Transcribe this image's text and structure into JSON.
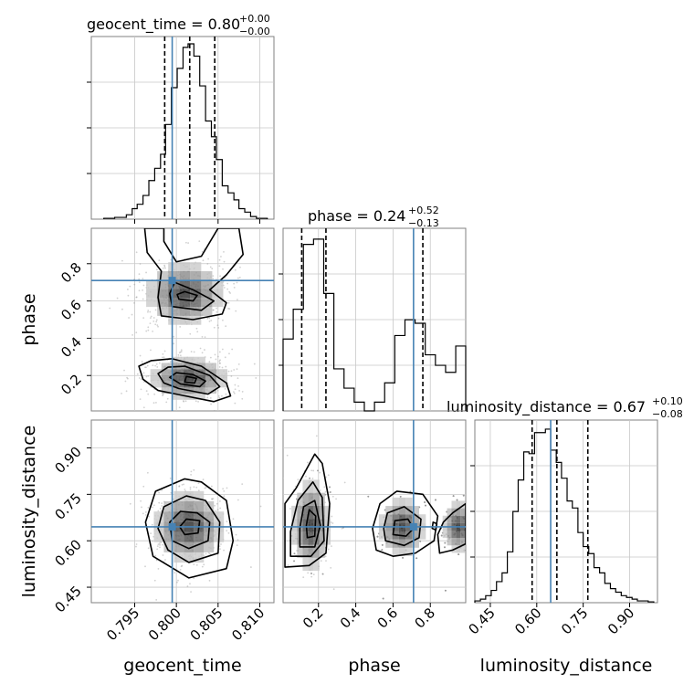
{
  "chart_data": {
    "type": "corner",
    "parameters": [
      "geocent_time",
      "phase",
      "luminosity_distance"
    ],
    "truths": {
      "geocent_time": 0.7995,
      "phase": 0.71,
      "luminosity_distance": 0.645
    },
    "truth_color": "#4682b4",
    "titles": [
      {
        "param": "geocent_time",
        "label": "geocent_time = 0.80",
        "plus": "+0.00",
        "minus": "−0.00"
      },
      {
        "param": "phase",
        "label": "phase = 0.24",
        "plus": "+0.52",
        "minus": "−0.13"
      },
      {
        "param": "luminosity_distance",
        "label": "luminosity_distance = 0.67",
        "plus": "+0.10",
        "minus": "−0.08"
      }
    ],
    "axes": {
      "geocent_time": {
        "range": [
          0.7898,
          0.8117
        ],
        "ticks": [
          0.795,
          0.8,
          0.805,
          0.81
        ],
        "tick_labels": [
          "0.795",
          "0.800",
          "0.805",
          "0.810"
        ]
      },
      "phase": {
        "range": [
          0.01,
          0.99
        ],
        "ticks": [
          0.2,
          0.4,
          0.6,
          0.8
        ],
        "tick_labels": [
          "0.2",
          "0.4",
          "0.6",
          "0.8"
        ]
      },
      "luminosity_distance": {
        "range": [
          0.4,
          0.99
        ],
        "ticks": [
          0.45,
          0.6,
          0.75,
          0.9
        ],
        "tick_labels": [
          "0.45",
          "0.60",
          "0.75",
          "0.90"
        ]
      }
    },
    "hist_geocent_time": {
      "bin_edges": [
        0.7913,
        0.792,
        0.7926,
        0.7933,
        0.794,
        0.7947,
        0.7953,
        0.796,
        0.7967,
        0.7974,
        0.7981,
        0.7987,
        0.7994,
        0.8001,
        0.8008,
        0.8014,
        0.8021,
        0.8028,
        0.8035,
        0.8042,
        0.8048,
        0.8055,
        0.8062,
        0.8069,
        0.8075,
        0.8082,
        0.8089,
        0.8096,
        0.8102,
        0.8109
      ],
      "counts": [
        0.005,
        0.005,
        0.01,
        0.01,
        0.025,
        0.06,
        0.085,
        0.135,
        0.22,
        0.29,
        0.37,
        0.54,
        0.75,
        0.86,
        0.98,
        1.0,
        0.93,
        0.76,
        0.56,
        0.47,
        0.34,
        0.19,
        0.15,
        0.11,
        0.06,
        0.04,
        0.015,
        0.005,
        0.005
      ],
      "quantiles": [
        0.7986,
        0.8016,
        0.8046
      ]
    },
    "hist_phase": {
      "bin_edges": [
        0.01,
        0.0645,
        0.119,
        0.1735,
        0.228,
        0.2825,
        0.337,
        0.3915,
        0.446,
        0.5005,
        0.555,
        0.6095,
        0.664,
        0.7185,
        0.773,
        0.8275,
        0.882,
        0.9365,
        0.99
      ],
      "counts": [
        0.41,
        0.58,
        0.95,
        0.98,
        0.67,
        0.24,
        0.13,
        0.05,
        0.0,
        0.05,
        0.16,
        0.43,
        0.52,
        0.5,
        0.32,
        0.26,
        0.22,
        0.37
      ],
      "quantiles": [
        0.11,
        0.24,
        0.76
      ]
    },
    "hist_luminosity_distance": {
      "bin_edges": [
        0.4,
        0.418,
        0.435,
        0.453,
        0.47,
        0.488,
        0.505,
        0.523,
        0.54,
        0.558,
        0.575,
        0.593,
        0.61,
        0.628,
        0.645,
        0.663,
        0.68,
        0.698,
        0.715,
        0.733,
        0.75,
        0.768,
        0.785,
        0.803,
        0.82,
        0.838,
        0.855,
        0.873,
        0.89,
        0.908,
        0.925,
        0.943,
        0.96,
        0.978
      ],
      "counts": [
        0.01,
        0.02,
        0.04,
        0.07,
        0.12,
        0.17,
        0.29,
        0.52,
        0.7,
        0.86,
        0.85,
        0.97,
        0.97,
        0.99,
        0.87,
        0.8,
        0.71,
        0.58,
        0.54,
        0.4,
        0.32,
        0.28,
        0.2,
        0.17,
        0.11,
        0.08,
        0.06,
        0.04,
        0.03,
        0.02,
        0.01,
        0.01,
        0.005
      ],
      "quantiles": [
        0.585,
        0.665,
        0.765
      ]
    },
    "density_phase_vs_geocent_time": {
      "blobs": [
        {
          "x": 0.8015,
          "y": 0.185,
          "sx": 0.0022,
          "sy": 0.055
        },
        {
          "x": 0.801,
          "y": 0.64,
          "sx": 0.0022,
          "sy": 0.08
        }
      ],
      "contours": [
        {
          "level": 1,
          "points": [
            [
              0.8,
              0.1
            ],
            [
              0.8045,
              0.06
            ],
            [
              0.8065,
              0.09
            ],
            [
              0.806,
              0.16
            ],
            [
              0.803,
              0.25
            ],
            [
              0.7995,
              0.29
            ],
            [
              0.797,
              0.28
            ],
            [
              0.7955,
              0.25
            ],
            [
              0.796,
              0.18
            ],
            [
              0.7978,
              0.12
            ]
          ]
        },
        {
          "level": 2,
          "points": [
            [
              0.8003,
              0.13
            ],
            [
              0.8038,
              0.1
            ],
            [
              0.8052,
              0.14
            ],
            [
              0.804,
              0.2
            ],
            [
              0.801,
              0.25
            ],
            [
              0.799,
              0.245
            ],
            [
              0.7978,
              0.21
            ],
            [
              0.7985,
              0.16
            ]
          ]
        },
        {
          "level": 3,
          "points": [
            [
              0.8005,
              0.155
            ],
            [
              0.8028,
              0.14
            ],
            [
              0.8035,
              0.17
            ],
            [
              0.802,
              0.205
            ],
            [
              0.8,
              0.215
            ],
            [
              0.7992,
              0.19
            ]
          ]
        },
        {
          "level": 4,
          "points": [
            [
              0.801,
              0.165
            ],
            [
              0.8022,
              0.16
            ],
            [
              0.8024,
              0.185
            ],
            [
              0.8012,
              0.195
            ]
          ]
        },
        {
          "level": 1,
          "points": [
            [
              0.7982,
              0.52
            ],
            [
              0.802,
              0.5
            ],
            [
              0.8055,
              0.53
            ],
            [
              0.806,
              0.59
            ],
            [
              0.804,
              0.66
            ],
            [
              0.806,
              0.74
            ],
            [
              0.808,
              0.85
            ],
            [
              0.8075,
              0.99
            ],
            [
              0.805,
              0.99
            ],
            [
              0.803,
              0.84
            ],
            [
              0.8,
              0.81
            ],
            [
              0.7985,
              0.92
            ],
            [
              0.7985,
              0.99
            ],
            [
              0.7962,
              0.99
            ],
            [
              0.7965,
              0.86
            ],
            [
              0.7982,
              0.76
            ],
            [
              0.7978,
              0.62
            ]
          ]
        },
        {
          "level": 2,
          "points": [
            [
              0.7995,
              0.57
            ],
            [
              0.803,
              0.55
            ],
            [
              0.8045,
              0.6
            ],
            [
              0.802,
              0.66
            ],
            [
              0.7998,
              0.7
            ],
            [
              0.7992,
              0.64
            ]
          ]
        },
        {
          "level": 3,
          "points": [
            [
              0.8003,
              0.61
            ],
            [
              0.802,
              0.6
            ],
            [
              0.8025,
              0.63
            ],
            [
              0.801,
              0.65
            ],
            [
              0.8001,
              0.635
            ]
          ]
        }
      ]
    },
    "density_luminosity_distance_vs_geocent_time": {
      "blobs": [
        {
          "x": 0.8015,
          "y": 0.645,
          "sx": 0.002,
          "sy": 0.055
        }
      ],
      "contours": [
        {
          "level": 1,
          "points": [
            [
              0.8015,
              0.48
            ],
            [
              0.806,
              0.51
            ],
            [
              0.8068,
              0.6
            ],
            [
              0.806,
              0.73
            ],
            [
              0.803,
              0.79
            ],
            [
              0.801,
              0.8
            ],
            [
              0.7975,
              0.76
            ],
            [
              0.7963,
              0.66
            ],
            [
              0.7972,
              0.55
            ]
          ]
        },
        {
          "level": 2,
          "points": [
            [
              0.8015,
              0.53
            ],
            [
              0.805,
              0.56
            ],
            [
              0.8052,
              0.66
            ],
            [
              0.8035,
              0.73
            ],
            [
              0.8012,
              0.745
            ],
            [
              0.7985,
              0.71
            ],
            [
              0.7978,
              0.64
            ],
            [
              0.799,
              0.57
            ]
          ]
        },
        {
          "level": 3,
          "points": [
            [
              0.8015,
              0.575
            ],
            [
              0.8038,
              0.6
            ],
            [
              0.804,
              0.66
            ],
            [
              0.8025,
              0.69
            ],
            [
              0.8005,
              0.695
            ],
            [
              0.7992,
              0.66
            ],
            [
              0.7995,
              0.6
            ]
          ]
        },
        {
          "level": 4,
          "points": [
            [
              0.801,
              0.62
            ],
            [
              0.8026,
              0.625
            ],
            [
              0.8028,
              0.665
            ],
            [
              0.8012,
              0.67
            ],
            [
              0.8004,
              0.645
            ]
          ]
        }
      ]
    },
    "density_luminosity_distance_vs_phase": {
      "blobs": [
        {
          "x": 0.16,
          "y": 0.65,
          "sx": 0.05,
          "sy": 0.07
        },
        {
          "x": 0.65,
          "y": 0.645,
          "sx": 0.06,
          "sy": 0.045
        },
        {
          "x": 0.95,
          "y": 0.645,
          "sx": 0.04,
          "sy": 0.04
        }
      ],
      "contours": [
        {
          "level": 1,
          "points": [
            [
              0.02,
              0.515
            ],
            [
              0.15,
              0.52
            ],
            [
              0.24,
              0.56
            ],
            [
              0.26,
              0.72
            ],
            [
              0.22,
              0.85
            ],
            [
              0.18,
              0.88
            ],
            [
              0.08,
              0.77
            ],
            [
              0.02,
              0.72
            ]
          ]
        },
        {
          "level": 2,
          "points": [
            [
              0.05,
              0.55
            ],
            [
              0.16,
              0.55
            ],
            [
              0.23,
              0.6
            ],
            [
              0.22,
              0.74
            ],
            [
              0.17,
              0.79
            ],
            [
              0.09,
              0.73
            ],
            [
              0.05,
              0.63
            ]
          ]
        },
        {
          "level": 3,
          "points": [
            [
              0.1,
              0.58
            ],
            [
              0.18,
              0.58
            ],
            [
              0.21,
              0.65
            ],
            [
              0.18,
              0.73
            ],
            [
              0.12,
              0.71
            ],
            [
              0.1,
              0.64
            ]
          ]
        },
        {
          "level": 4,
          "points": [
            [
              0.14,
              0.61
            ],
            [
              0.18,
              0.615
            ],
            [
              0.185,
              0.68
            ],
            [
              0.15,
              0.7
            ],
            [
              0.135,
              0.65
            ]
          ]
        },
        {
          "level": 1,
          "points": [
            [
              0.51,
              0.57
            ],
            [
              0.6,
              0.55
            ],
            [
              0.72,
              0.56
            ],
            [
              0.82,
              0.6
            ],
            [
              0.84,
              0.68
            ],
            [
              0.76,
              0.75
            ],
            [
              0.62,
              0.76
            ],
            [
              0.53,
              0.72
            ],
            [
              0.49,
              0.64
            ]
          ]
        },
        {
          "level": 2,
          "points": [
            [
              0.56,
              0.6
            ],
            [
              0.66,
              0.585
            ],
            [
              0.74,
              0.61
            ],
            [
              0.75,
              0.67
            ],
            [
              0.66,
              0.71
            ],
            [
              0.57,
              0.69
            ],
            [
              0.55,
              0.64
            ]
          ]
        },
        {
          "level": 3,
          "points": [
            [
              0.6,
              0.62
            ],
            [
              0.67,
              0.615
            ],
            [
              0.71,
              0.64
            ],
            [
              0.68,
              0.67
            ],
            [
              0.61,
              0.665
            ]
          ]
        },
        {
          "level": 1,
          "points": [
            [
              0.85,
              0.56
            ],
            [
              0.92,
              0.57
            ],
            [
              0.99,
              0.59
            ],
            [
              0.99,
              0.72
            ],
            [
              0.92,
              0.69
            ],
            [
              0.87,
              0.66
            ],
            [
              0.84,
              0.62
            ]
          ]
        },
        {
          "level": 2,
          "points": [
            [
              0.81,
              0.64
            ],
            [
              0.83,
              0.635
            ],
            [
              0.835,
              0.655
            ],
            [
              0.815,
              0.66
            ]
          ]
        }
      ]
    },
    "axis_labels": {
      "x": [
        "geocent_time",
        "phase",
        "luminosity_distance"
      ],
      "y": [
        "phase",
        "luminosity_distance"
      ]
    },
    "grid": true
  }
}
